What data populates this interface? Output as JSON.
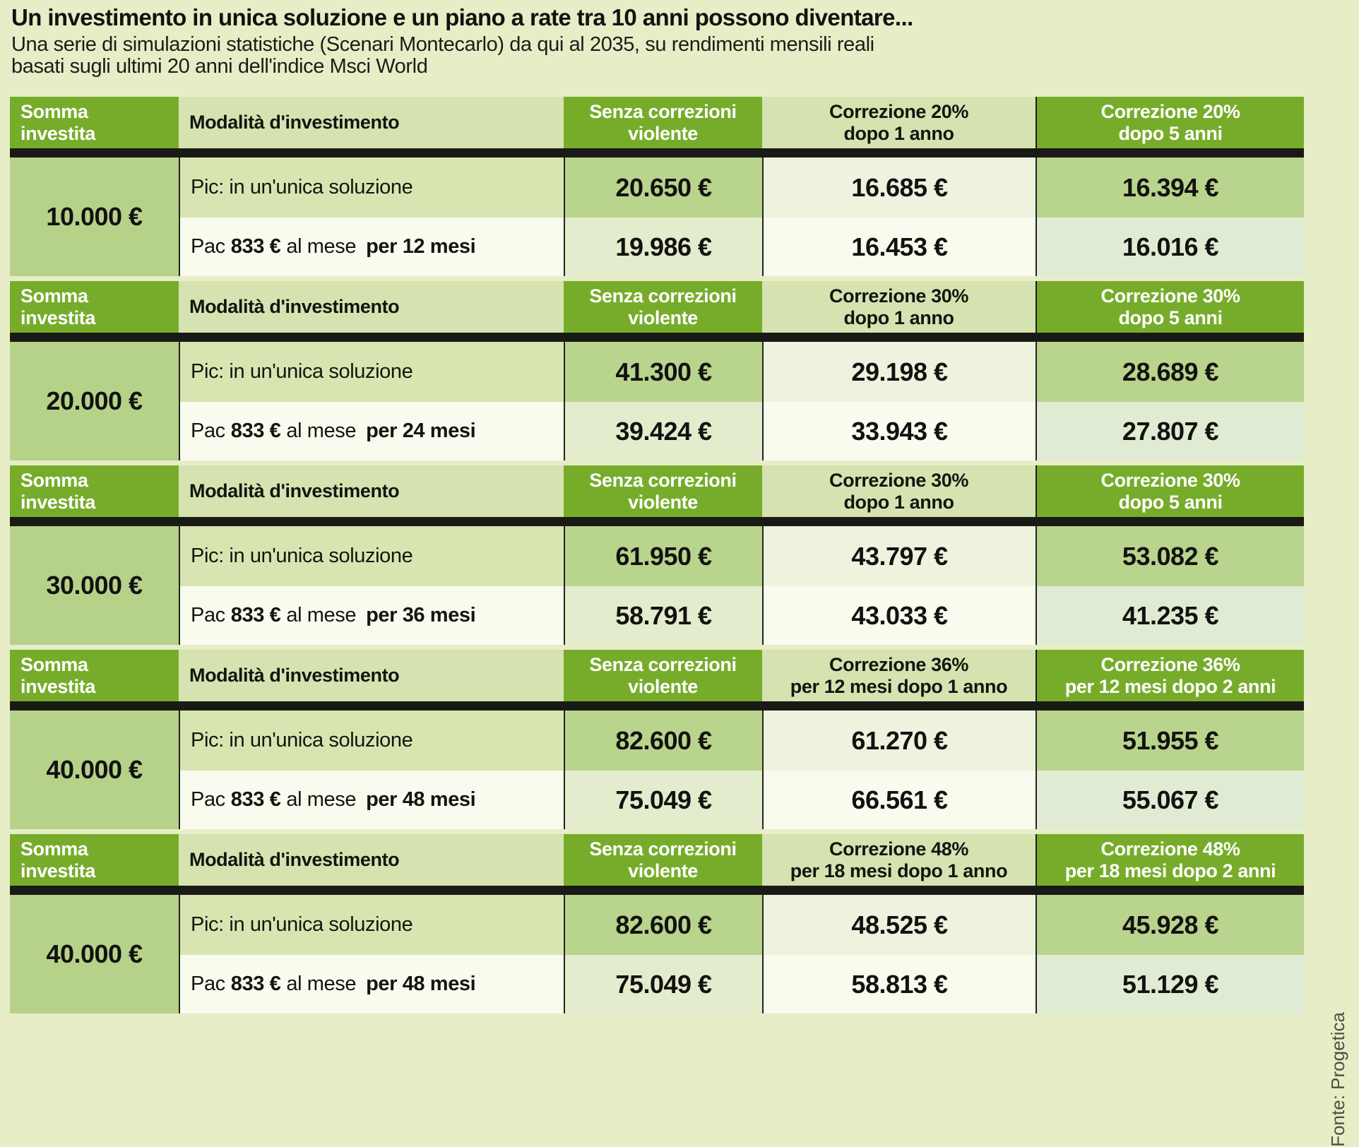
{
  "title": "Un investimento in unica soluzione e un piano a rate tra 10 anni possono diventare...",
  "subtitle": {
    "line1": "Una serie di simulazioni statistiche (Scenari Montecarlo) da qui al 2035, su rendimenti mensili reali",
    "line2": "basati sugli ultimi 20 anni dell'indice Msci World"
  },
  "source": "Fonte: Progetica",
  "colors": {
    "page_bg": "#e7edc6",
    "header_green": "#77ac2b",
    "header_light": "#d6e3b1",
    "cell_green": "#b9d48d",
    "cell_pale": "#edf3de",
    "cell_white": "#f9fbee",
    "divider_black": "#191915"
  },
  "sections": [
    {
      "header": {
        "somma": "Somma\ninvestita",
        "modalita": "Modalità d'investimento",
        "senza": "Senza correzioni\nviolente",
        "corr1": "Correzione 20%\ndopo 1 anno",
        "corr2": "Correzione 20%\ndopo 5 anni"
      },
      "somma": "10.000 €",
      "pic": {
        "label": "Pic: in un'unica soluzione",
        "v1": "20.650 €",
        "v2": "16.685 €",
        "v3": "16.394 €"
      },
      "pac": {
        "pre": "Pac",
        "amount": "833 €",
        "mid": "al mese",
        "per": "per 12 mesi",
        "v1": "19.986 €",
        "v2": "16.453 €",
        "v3": "16.016 €"
      }
    },
    {
      "header": {
        "somma": "Somma\ninvestita",
        "modalita": "Modalità d'investimento",
        "senza": "Senza correzioni\nviolente",
        "corr1": "Correzione 30%\ndopo 1 anno",
        "corr2": "Correzione 30%\ndopo 5 anni"
      },
      "somma": "20.000 €",
      "pic": {
        "label": "Pic: in un'unica soluzione",
        "v1": "41.300 €",
        "v2": "29.198 €",
        "v3": "28.689 €"
      },
      "pac": {
        "pre": "Pac",
        "amount": "833 €",
        "mid": "al mese",
        "per": "per 24 mesi",
        "v1": "39.424 €",
        "v2": "33.943 €",
        "v3": "27.807 €"
      }
    },
    {
      "header": {
        "somma": "Somma\ninvestita",
        "modalita": "Modalità d'investimento",
        "senza": "Senza correzioni\nviolente",
        "corr1": "Correzione 30%\ndopo 1 anno",
        "corr2": "Correzione 30%\ndopo 5 anni"
      },
      "somma": "30.000 €",
      "pic": {
        "label": "Pic: in un'unica soluzione",
        "v1": "61.950 €",
        "v2": "43.797 €",
        "v3": "53.082 €"
      },
      "pac": {
        "pre": "Pac",
        "amount": "833 €",
        "mid": "al mese",
        "per": "per 36 mesi",
        "v1": "58.791 €",
        "v2": "43.033 €",
        "v3": "41.235 €"
      }
    },
    {
      "header": {
        "somma": "Somma\ninvestita",
        "modalita": "Modalità d'investimento",
        "senza": "Senza correzioni\nviolente",
        "corr1": "Correzione 36%\nper 12 mesi dopo 1 anno",
        "corr2": "Correzione 36%\nper 12 mesi dopo 2 anni"
      },
      "somma": "40.000 €",
      "pic": {
        "label": "Pic: in un'unica soluzione",
        "v1": "82.600 €",
        "v2": "61.270 €",
        "v3": "51.955 €"
      },
      "pac": {
        "pre": "Pac",
        "amount": "833 €",
        "mid": "al mese",
        "per": "per 48 mesi",
        "v1": "75.049 €",
        "v2": "66.561 €",
        "v3": "55.067 €"
      }
    },
    {
      "header": {
        "somma": "Somma\ninvestita",
        "modalita": "Modalità d'investimento",
        "senza": "Senza correzioni\nviolente",
        "corr1": "Correzione 48%\nper 18 mesi dopo 1 anno",
        "corr2": "Correzione 48%\nper 18 mesi dopo 2 anni"
      },
      "somma": "40.000 €",
      "pic": {
        "label": "Pic: in un'unica soluzione",
        "v1": "82.600 €",
        "v2": "48.525 €",
        "v3": "45.928 €"
      },
      "pac": {
        "pre": "Pac",
        "amount": "833 €",
        "mid": "al mese",
        "per": "per 48 mesi",
        "v1": "75.049 €",
        "v2": "58.813 €",
        "v3": "51.129 €"
      }
    }
  ],
  "chart_data": [
    {
      "type": "table",
      "title": "Somma investita 10.000 €",
      "columns": [
        "Somma investita",
        "Modalità d'investimento",
        "Senza correzioni violente",
        "Correzione 20% dopo 1 anno",
        "Correzione 20% dopo 5 anni"
      ],
      "rows": [
        [
          "10.000 €",
          "Pic: in un'unica soluzione",
          20650,
          16685,
          16394
        ],
        [
          "10.000 €",
          "Pac 833 € al mese per 12 mesi",
          19986,
          16453,
          16016
        ]
      ]
    },
    {
      "type": "table",
      "title": "Somma investita 20.000 €",
      "columns": [
        "Somma investita",
        "Modalità d'investimento",
        "Senza correzioni violente",
        "Correzione 30% dopo 1 anno",
        "Correzione 30% dopo 5 anni"
      ],
      "rows": [
        [
          "20.000 €",
          "Pic: in un'unica soluzione",
          41300,
          29198,
          28689
        ],
        [
          "20.000 €",
          "Pac 833 € al mese per 24 mesi",
          39424,
          33943,
          27807
        ]
      ]
    },
    {
      "type": "table",
      "title": "Somma investita 30.000 €",
      "columns": [
        "Somma investita",
        "Modalità d'investimento",
        "Senza correzioni violente",
        "Correzione 30% dopo 1 anno",
        "Correzione 30% dopo 5 anni"
      ],
      "rows": [
        [
          "30.000 €",
          "Pic: in un'unica soluzione",
          61950,
          43797,
          53082
        ],
        [
          "30.000 €",
          "Pac 833 € al mese per 36 mesi",
          58791,
          43033,
          41235
        ]
      ]
    },
    {
      "type": "table",
      "title": "Somma investita 40.000 €",
      "columns": [
        "Somma investita",
        "Modalità d'investimento",
        "Senza correzioni violente",
        "Correzione 36% per 12 mesi dopo 1 anno",
        "Correzione 36% per 12 mesi dopo 2 anni"
      ],
      "rows": [
        [
          "40.000 €",
          "Pic: in un'unica soluzione",
          82600,
          61270,
          51955
        ],
        [
          "40.000 €",
          "Pac 833 € al mese per 48 mesi",
          75049,
          66561,
          55067
        ]
      ]
    },
    {
      "type": "table",
      "title": "Somma investita 40.000 €",
      "columns": [
        "Somma investita",
        "Modalità d'investimento",
        "Senza correzioni violente",
        "Correzione 48% per 18 mesi dopo 1 anno",
        "Correzione 48% per 18 mesi dopo 2 anni"
      ],
      "rows": [
        [
          "40.000 €",
          "Pic: in un'unica soluzione",
          82600,
          48525,
          45928
        ],
        [
          "40.000 €",
          "Pac 833 € al mese per 48 mesi",
          75049,
          58813,
          51129
        ]
      ]
    }
  ]
}
